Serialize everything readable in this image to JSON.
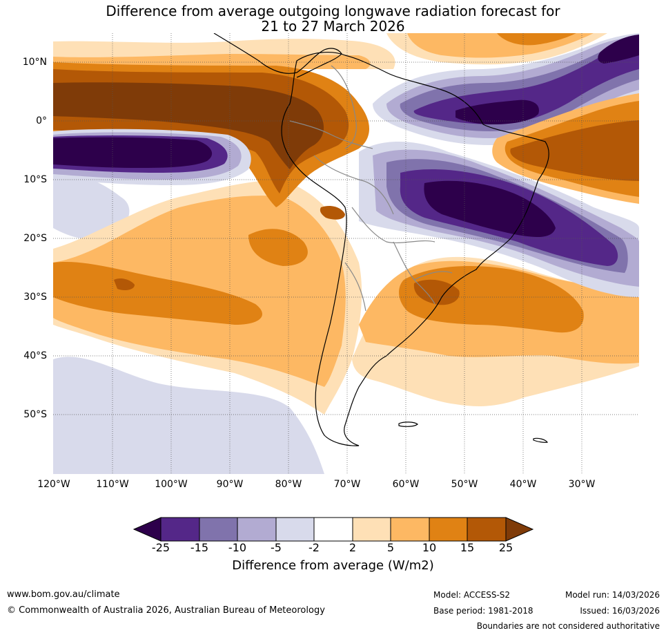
{
  "title": {
    "line1": "Difference from average outgoing longwave radiation forecast for",
    "line2": "21 to 27 March 2026"
  },
  "map": {
    "lat_labels": [
      "10°N",
      "0°",
      "10°S",
      "20°S",
      "30°S",
      "40°S",
      "50°S"
    ],
    "lon_labels": [
      "120°W",
      "110°W",
      "100°W",
      "90°W",
      "80°W",
      "70°W",
      "60°W",
      "50°W",
      "40°W",
      "30°W"
    ],
    "region": "South America"
  },
  "colorbar": {
    "ticks": [
      "-25",
      "-15",
      "-10",
      "-5",
      "-2",
      "2",
      "5",
      "10",
      "15",
      "25"
    ],
    "colors": [
      "#2d004b",
      "#542788",
      "#8073ac",
      "#b2abd2",
      "#d8daeb",
      "#ffffff",
      "#fee0b6",
      "#fdb863",
      "#e08214",
      "#b35806",
      "#7f3b08"
    ],
    "label": "Difference from average (W/m2)"
  },
  "footer": {
    "url": "www.bom.gov.au/climate",
    "copyright": "© Commonwealth of Australia 2026, Australian Bureau of Meteorology",
    "model": "Model: ACCESS-S2",
    "base_period": "Base period: 1981-2018",
    "model_run": "Model run: 14/03/2026",
    "issued": "Issued: 16/03/2026",
    "disclaimer": "Boundaries are not considered authoritative"
  }
}
